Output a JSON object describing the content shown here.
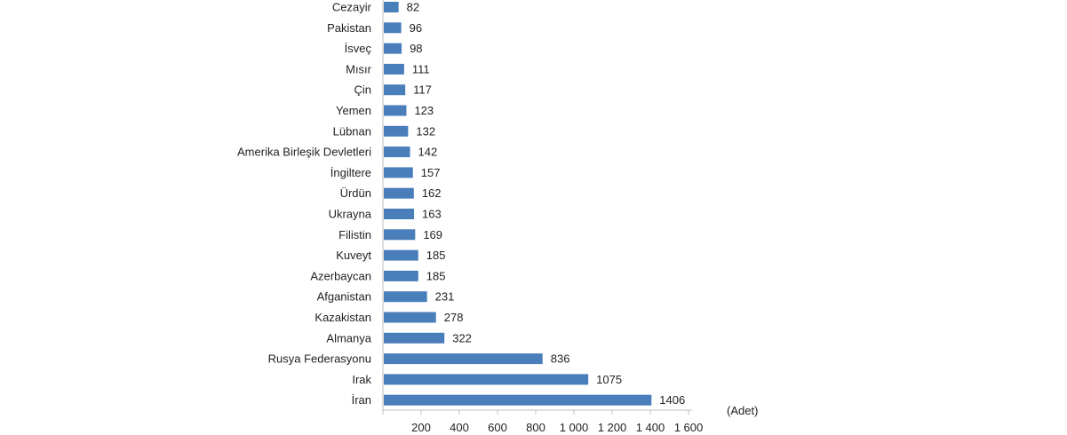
{
  "chart_data": {
    "type": "bar",
    "orientation": "horizontal",
    "categories": [
      "Cezayir",
      "Pakistan",
      "İsveç",
      "Mısır",
      "Çin",
      "Yemen",
      "Lübnan",
      "Amerika Birleşik Devletleri",
      "İngiltere",
      "Ürdün",
      "Ukrayna",
      "Filistin",
      "Kuveyt",
      "Azerbaycan",
      "Afganistan",
      "Kazakistan",
      "Almanya",
      "Rusya Federasyonu",
      "Irak",
      "İran"
    ],
    "values": [
      82,
      96,
      98,
      111,
      117,
      123,
      132,
      142,
      157,
      162,
      163,
      169,
      185,
      185,
      231,
      278,
      322,
      836,
      1075,
      1406
    ],
    "xticks": [
      0,
      200,
      400,
      600,
      800,
      1000,
      1200,
      1400,
      1600
    ],
    "xtick_labels": [
      "",
      "200",
      "400",
      "600",
      "800",
      "1 000",
      "1 200",
      "1 400",
      "1 600"
    ],
    "xlim": [
      0,
      1600
    ],
    "unit_label": "(Adet)",
    "bar_color": "#4a7ebb",
    "grid": false,
    "legend": "none"
  }
}
